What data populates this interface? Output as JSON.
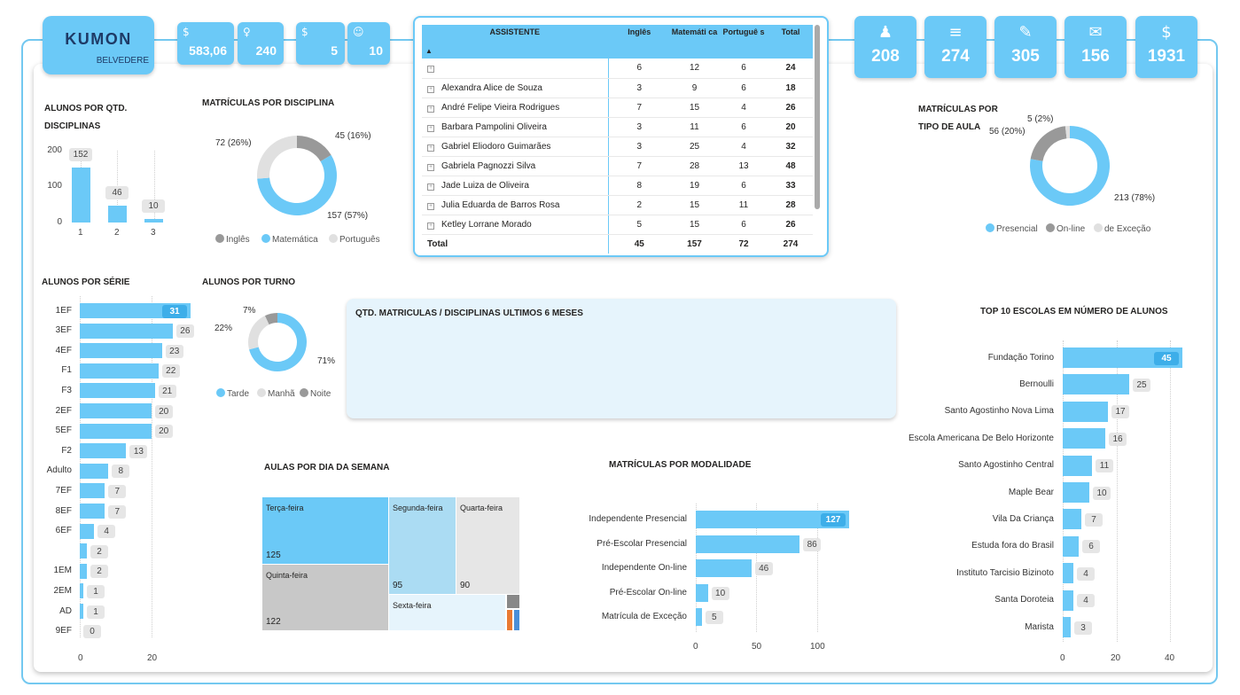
{
  "brand": {
    "logo_word": "KUMON",
    "unit": "BELVEDERE"
  },
  "kpis_small": [
    {
      "icon": "money-search-icon",
      "glyph": "$",
      "value": "583,06"
    },
    {
      "icon": "location-pin-icon",
      "glyph": "♀",
      "value": "240"
    },
    {
      "icon": "coin-icon",
      "glyph": "$",
      "value": "5"
    },
    {
      "icon": "users-icon",
      "glyph": "☺",
      "value": "10"
    }
  ],
  "kpis_big": [
    {
      "icon": "graduate-icon",
      "glyph": "♟",
      "value": "208"
    },
    {
      "icon": "books-icon",
      "glyph": "≡",
      "value": "274"
    },
    {
      "icon": "edit-document-icon",
      "glyph": "✎",
      "value": "305"
    },
    {
      "icon": "money-document-icon",
      "glyph": "✉",
      "value": "156"
    },
    {
      "icon": "money-coin-icon",
      "glyph": "$",
      "value": "1931"
    }
  ],
  "table": {
    "headers": [
      "ASSISTENTE",
      "Inglês",
      "Matemáti ca",
      "Portuguê s",
      "Total"
    ],
    "sort_indicator": "▲",
    "rows": [
      {
        "name": "",
        "ingles": "6",
        "matematica": "12",
        "portugues": "6",
        "total": "24"
      },
      {
        "name": "Alexandra Alice de Souza",
        "ingles": "3",
        "matematica": "9",
        "portugues": "6",
        "total": "18"
      },
      {
        "name": "André Felipe Vieira Rodrigues",
        "ingles": "7",
        "matematica": "15",
        "portugues": "4",
        "total": "26"
      },
      {
        "name": "Barbara Pampolini Oliveira",
        "ingles": "3",
        "matematica": "11",
        "portugues": "6",
        "total": "20"
      },
      {
        "name": "Gabriel Eliodoro Guimarães",
        "ingles": "3",
        "matematica": "25",
        "portugues": "4",
        "total": "32"
      },
      {
        "name": "Gabriela Pagnozzi Silva",
        "ingles": "7",
        "matematica": "28",
        "portugues": "13",
        "total": "48"
      },
      {
        "name": "Jade Luiza de Oliveira",
        "ingles": "8",
        "matematica": "19",
        "portugues": "6",
        "total": "33"
      },
      {
        "name": "Julia Eduarda de Barros Rosa",
        "ingles": "2",
        "matematica": "15",
        "portugues": "11",
        "total": "28"
      },
      {
        "name": "Ketley Lorrane Morado",
        "ingles": "5",
        "matematica": "15",
        "portugues": "6",
        "total": "26"
      }
    ],
    "total_row": {
      "name": "Total",
      "ingles": "45",
      "matematica": "157",
      "portugues": "72",
      "total": "274"
    }
  },
  "panel_6m": {
    "title": "QTD. MATRICULAS / DISCIPLINAS ULTIMOS 6 MESES"
  },
  "colors": {
    "primary": "#6bc9f7",
    "gray": "#999999",
    "light": "#e0e0e0"
  },
  "chart_data": [
    {
      "id": "alunos-qtd-disciplinas",
      "type": "bar",
      "title": [
        "ALUNOS POR QTD.",
        "DISCIPLINAS"
      ],
      "categories": [
        "1",
        "2",
        "3"
      ],
      "values": [
        152,
        46,
        10
      ],
      "y_ticks": [
        "200",
        "100",
        "0"
      ],
      "ylim": [
        0,
        200
      ]
    },
    {
      "id": "matriculas-disciplina",
      "type": "pie",
      "title": "MATRÍCULAS POR DISCIPLINA",
      "slices": [
        {
          "name": "Inglês",
          "value": 45,
          "label": "45 (16%)",
          "color": "#999999"
        },
        {
          "name": "Matemática",
          "value": 157,
          "label": "157 (57%)",
          "color": "#6bc9f7"
        },
        {
          "name": "Português",
          "value": 72,
          "label": "72 (26%)",
          "color": "#e0e0e0"
        }
      ]
    },
    {
      "id": "matriculas-tipo-aula",
      "type": "pie",
      "title": [
        "MATRÍCULAS POR",
        "TIPO DE AULA"
      ],
      "slices": [
        {
          "name": "Presencial",
          "value": 213,
          "label": "213 (78%)",
          "color": "#6bc9f7"
        },
        {
          "name": "On-line",
          "value": 56,
          "label": "56 (20%)",
          "color": "#999999"
        },
        {
          "name": "de Exceção",
          "value": 5,
          "label": "5 (2%)",
          "color": "#e0e0e0"
        }
      ]
    },
    {
      "id": "alunos-serie",
      "type": "bar",
      "orientation": "horizontal",
      "title": "ALUNOS POR SÉRIE",
      "categories": [
        "1EF",
        "3EF",
        "4EF",
        "F1",
        "F3",
        "2EF",
        "5EF",
        "F2",
        "Adulto",
        "7EF",
        "8EF",
        "6EF",
        "",
        "1EM",
        "2EM",
        "AD",
        "9EF"
      ],
      "values": [
        31,
        26,
        23,
        22,
        21,
        20,
        20,
        13,
        8,
        7,
        7,
        4,
        2,
        2,
        1,
        1,
        0
      ],
      "x_ticks": [
        "0",
        "20"
      ],
      "xlim": [
        0,
        31
      ]
    },
    {
      "id": "alunos-turno",
      "type": "pie",
      "title": "ALUNOS POR TURNO",
      "slices": [
        {
          "name": "Tarde",
          "value": 71,
          "label": "71%",
          "color": "#6bc9f7"
        },
        {
          "name": "Manhã",
          "value": 22,
          "label": "22%",
          "color": "#e0e0e0"
        },
        {
          "name": "Noite",
          "value": 7,
          "label": "7%",
          "color": "#999999"
        }
      ]
    },
    {
      "id": "aulas-dia-semana",
      "type": "treemap",
      "title": "AULAS POR DIA DA SEMANA",
      "items": [
        {
          "name": "Terça-feira",
          "value": "125"
        },
        {
          "name": "Quinta-feira",
          "value": "122"
        },
        {
          "name": "Segunda-feira",
          "value": "95"
        },
        {
          "name": "Quarta-feira",
          "value": "90"
        },
        {
          "name": "Sexta-feira",
          "value": ""
        }
      ]
    },
    {
      "id": "matriculas-modalidade",
      "type": "bar",
      "orientation": "horizontal",
      "title": "MATRÍCULAS POR MODALIDADE",
      "categories": [
        "Independente Presencial",
        "Pré-Escolar Presencial",
        "Independente On-line",
        "Pré-Escolar On-line",
        "Matrícula de Exceção"
      ],
      "values": [
        127,
        86,
        46,
        10,
        5
      ],
      "x_ticks": [
        "0",
        "50",
        "100"
      ],
      "xlim": [
        0,
        127
      ]
    },
    {
      "id": "top10-escolas",
      "type": "bar",
      "orientation": "horizontal",
      "title": "TOP 10 ESCOLAS EM NÚMERO DE ALUNOS",
      "categories": [
        "Fundação Torino",
        "Bernoulli",
        "Santo Agostinho Nova Lima",
        "Escola Americana De Belo Horizonte",
        "Santo Agostinho Central",
        "Maple Bear",
        "Vila Da Criança",
        "Estuda fora do Brasil",
        "Instituto Tarcisio Bizinoto",
        "Santa Doroteia",
        "Marista"
      ],
      "values": [
        45,
        25,
        17,
        16,
        11,
        10,
        7,
        6,
        4,
        4,
        3
      ],
      "x_ticks": [
        "0",
        "20",
        "40"
      ],
      "xlim": [
        0,
        45
      ]
    }
  ]
}
